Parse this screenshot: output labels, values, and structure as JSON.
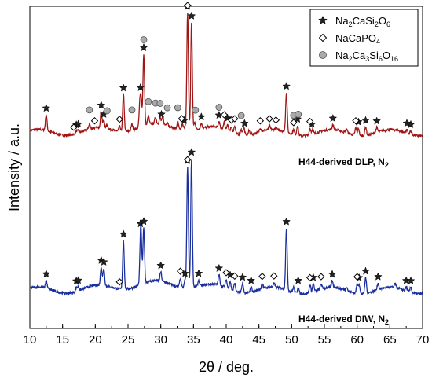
{
  "chart_data": {
    "type": "line",
    "xlabel": "2θ / deg.",
    "ylabel": "Intensity / a.u.",
    "xlim": [
      10,
      70
    ],
    "x_ticks": [
      10,
      15,
      20,
      25,
      30,
      35,
      40,
      45,
      50,
      55,
      60,
      65,
      70
    ],
    "grid": false,
    "legend_position": "top-right",
    "legend": [
      {
        "symbol": "star",
        "name": "Na2CaSi2O6"
      },
      {
        "symbol": "diamond",
        "name": "NaCaPO4"
      },
      {
        "symbol": "circle",
        "name": "Na2Ca3Si6O16"
      }
    ],
    "series": [
      {
        "name": "H44-derived DLP, N2",
        "color": "#a01414",
        "baseline": 0.57,
        "peaks": [
          [
            12.5,
            0.13
          ],
          [
            17.1,
            0.02
          ],
          [
            17.4,
            0.02
          ],
          [
            19.1,
            0.04
          ],
          [
            20.9,
            0.13
          ],
          [
            21.3,
            0.06
          ],
          [
            21.8,
            0.03
          ],
          [
            23.7,
            0.04
          ],
          [
            24.3,
            0.3
          ],
          [
            25.6,
            0.05
          ],
          [
            26.8,
            0.18
          ],
          [
            27.0,
            0.2
          ],
          [
            27.4,
            0.58
          ],
          [
            28.1,
            0.07
          ],
          [
            29.2,
            0.05
          ],
          [
            29.9,
            0.05
          ],
          [
            30.3,
            0.06
          ],
          [
            31.0,
            0.03
          ],
          [
            32.6,
            0.06
          ],
          [
            33.3,
            0.05
          ],
          [
            33.7,
            0.04
          ],
          [
            34.1,
            0.95
          ],
          [
            34.7,
            0.87
          ],
          [
            35.2,
            0.06
          ],
          [
            36.2,
            0.04
          ],
          [
            38.9,
            0.05
          ],
          [
            39.7,
            0.06
          ],
          [
            40.2,
            0.05
          ],
          [
            40.8,
            0.04
          ],
          [
            41.3,
            0.06
          ],
          [
            42.3,
            0.04
          ],
          [
            42.7,
            0.06
          ],
          [
            43.5,
            0.03
          ],
          [
            45.2,
            0.03
          ],
          [
            46.6,
            0.03
          ],
          [
            47.6,
            0.02
          ],
          [
            49.2,
            0.32
          ],
          [
            50.3,
            0.04
          ],
          [
            50.9,
            0.08
          ],
          [
            52.8,
            0.05
          ],
          [
            53.2,
            0.04
          ],
          [
            56.3,
            0.04
          ],
          [
            58.4,
            0.03
          ],
          [
            59.8,
            0.06
          ],
          [
            60.2,
            0.06
          ],
          [
            61.3,
            0.07
          ],
          [
            63.0,
            0.04
          ],
          [
            67.6,
            0.03
          ],
          [
            68.2,
            0.03
          ]
        ]
      },
      {
        "name": "H44-derived DIW, N2",
        "color": "#1a2f9e",
        "baseline": 0.0,
        "peaks": [
          [
            12.5,
            0.06
          ],
          [
            17.1,
            0.03
          ],
          [
            17.4,
            0.03
          ],
          [
            20.9,
            0.14
          ],
          [
            21.3,
            0.13
          ],
          [
            24.3,
            0.37
          ],
          [
            26.9,
            0.23
          ],
          [
            27.0,
            0.26
          ],
          [
            27.4,
            0.42
          ],
          [
            30.0,
            0.07
          ],
          [
            33.0,
            0.07
          ],
          [
            33.7,
            0.06
          ],
          [
            34.1,
            0.92
          ],
          [
            34.7,
            0.98
          ],
          [
            35.8,
            0.05
          ],
          [
            38.9,
            0.08
          ],
          [
            40.0,
            0.06
          ],
          [
            40.6,
            0.06
          ],
          [
            41.3,
            0.06
          ],
          [
            42.5,
            0.07
          ],
          [
            43.8,
            0.04
          ],
          [
            45.5,
            0.04
          ],
          [
            47.3,
            0.03
          ],
          [
            49.2,
            0.47
          ],
          [
            50.3,
            0.04
          ],
          [
            51.0,
            0.05
          ],
          [
            52.8,
            0.06
          ],
          [
            53.3,
            0.06
          ],
          [
            54.5,
            0.04
          ],
          [
            56.2,
            0.05
          ],
          [
            58.4,
            0.03
          ],
          [
            60.0,
            0.07
          ],
          [
            60.3,
            0.07
          ],
          [
            61.3,
            0.12
          ],
          [
            63.2,
            0.05
          ],
          [
            65.8,
            0.03
          ],
          [
            67.5,
            0.03
          ],
          [
            68.2,
            0.04
          ]
        ]
      }
    ],
    "annotations": [
      {
        "series": 0,
        "marker": "star",
        "x": [
          12.5,
          17.1,
          17.4,
          20.9,
          21.3,
          24.3,
          26.9,
          27.4,
          30.1,
          33.6,
          34.1,
          34.7,
          36.2,
          38.9,
          40.2,
          42.8,
          49.2,
          50.9,
          53.1,
          56.3,
          60.2,
          61.3,
          63.0,
          67.6,
          68.2
        ]
      },
      {
        "series": 0,
        "marker": "diamond",
        "x": [
          16.7,
          19.9,
          23.7,
          33.2,
          34.1,
          39.7,
          40.8,
          41.3,
          45.2,
          46.6,
          47.6,
          50.3,
          52.8,
          59.8
        ]
      },
      {
        "series": 0,
        "marker": "circle",
        "x": [
          19.1,
          21.8,
          25.6,
          27.4,
          28.1,
          29.2,
          29.9,
          31.0,
          32.6,
          35.3,
          38.9,
          42.3,
          50.3,
          51.0
        ]
      },
      {
        "series": 1,
        "marker": "star",
        "x": [
          12.5,
          17.1,
          17.4,
          20.9,
          21.3,
          24.3,
          26.9,
          27.4,
          30.0,
          33.7,
          34.1,
          34.7,
          35.8,
          38.9,
          40.6,
          42.5,
          43.8,
          49.2,
          51.0,
          53.3,
          56.2,
          60.3,
          61.3,
          63.2,
          67.5,
          68.2
        ]
      },
      {
        "series": 1,
        "marker": "diamond",
        "x": [
          23.7,
          33.0,
          34.1,
          40.0,
          41.3,
          45.5,
          47.3,
          52.8,
          54.5,
          60.0
        ]
      }
    ],
    "labels": {
      "dlp": "H44-derived DLP, N",
      "dlp_sub": "2",
      "diw": "H44-derived DIW, N",
      "diw_sub": "2",
      "legend_1_main": "Na",
      "legend_1_parts": [
        "Na",
        "2",
        "CaSi",
        "2",
        "O",
        "6"
      ],
      "legend_2_parts": [
        "NaCaPO",
        "4"
      ],
      "legend_3_parts": [
        "Na",
        "2",
        "Ca",
        "3",
        "Si",
        "6",
        "O",
        "16"
      ]
    }
  }
}
